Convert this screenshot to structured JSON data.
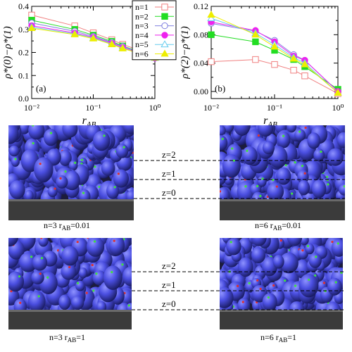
{
  "chart_data": [
    {
      "type": "line",
      "panel_label": "(a)",
      "xscale": "log",
      "xlim": [
        0.01,
        1
      ],
      "ylim": [
        0.0,
        0.4
      ],
      "x_ticks": [
        "10⁻²",
        "10⁻¹",
        "10⁰"
      ],
      "y_ticks": [
        "0.0",
        "0.1",
        "0.2",
        "0.3",
        "0.4"
      ],
      "ylabel": "ρ*(0)−ρ*(1)",
      "xlabel_main": "r",
      "xlabel_sub": "AB",
      "x": [
        0.01,
        0.05,
        0.1,
        0.2,
        0.3,
        1.0
      ],
      "series": [
        {
          "name": "n=1",
          "color": "#f08080",
          "marker": "square-open",
          "values": [
            0.362,
            0.315,
            0.285,
            0.255,
            0.235,
            0.185
          ]
        },
        {
          "name": "n=2",
          "color": "#22dd22",
          "marker": "square-filled",
          "values": [
            0.34,
            0.3,
            0.275,
            0.248,
            0.228,
            0.18
          ]
        },
        {
          "name": "n=3",
          "color": "#8080e0",
          "marker": "circle-open",
          "values": [
            0.328,
            0.292,
            0.27,
            0.244,
            0.226,
            0.178
          ]
        },
        {
          "name": "n=4",
          "color": "#ee22ee",
          "marker": "circle-filled",
          "values": [
            0.316,
            0.285,
            0.266,
            0.24,
            0.222,
            0.175
          ]
        },
        {
          "name": "n=5",
          "color": "#66ccee",
          "marker": "triangle-open",
          "values": [
            0.31,
            0.281,
            0.263,
            0.237,
            0.219,
            0.176
          ]
        },
        {
          "name": "n=6",
          "color": "#eeee00",
          "marker": "triangle-filled",
          "values": [
            0.305,
            0.278,
            0.26,
            0.235,
            0.217,
            0.177
          ]
        }
      ]
    },
    {
      "type": "line",
      "panel_label": "(b)",
      "xscale": "log",
      "xlim": [
        0.01,
        1
      ],
      "ylim": [
        -0.01,
        0.12
      ],
      "x_ticks": [
        "10⁻²",
        "10⁻¹",
        "10⁰"
      ],
      "y_ticks": [
        "0.00",
        "0.04",
        "0.08",
        "0.12"
      ],
      "ylabel": "ρ*(2)−ρ*(1)",
      "xlabel_main": "r",
      "xlabel_sub": "AB",
      "x": [
        0.01,
        0.05,
        0.1,
        0.2,
        0.3,
        1.0
      ],
      "series": [
        {
          "name": "n=1",
          "color": "#f08080",
          "marker": "square-open",
          "values": [
            0.042,
            0.045,
            0.038,
            0.03,
            0.022,
            -0.003
          ]
        },
        {
          "name": "n=2",
          "color": "#22dd22",
          "marker": "square-filled",
          "values": [
            0.08,
            0.07,
            0.058,
            0.045,
            0.035,
            0.003
          ]
        },
        {
          "name": "n=3",
          "color": "#8080e0",
          "marker": "circle-open",
          "values": [
            0.096,
            0.085,
            0.072,
            0.052,
            0.044,
            0.0
          ]
        },
        {
          "name": "n=4",
          "color": "#ee22ee",
          "marker": "circle-filled",
          "values": [
            0.098,
            0.086,
            0.07,
            0.05,
            0.044,
            0.0
          ]
        },
        {
          "name": "n=5",
          "color": "#66ccee",
          "marker": "triangle-open",
          "values": [
            0.103,
            0.082,
            0.066,
            0.048,
            0.04,
            -0.002
          ]
        },
        {
          "name": "n=6",
          "color": "#eeee00",
          "marker": "triangle-filled",
          "values": [
            0.108,
            0.08,
            0.063,
            0.046,
            0.038,
            -0.002
          ]
        }
      ]
    }
  ],
  "snapshots": {
    "levels": [
      "z=2",
      "z=1",
      "z=0"
    ],
    "captions": [
      {
        "main": "n=3 r",
        "sub": "AB",
        "tail": "=0.01"
      },
      {
        "main": "n=6 r",
        "sub": "AB",
        "tail": "=0.01"
      },
      {
        "main": "n=3 r",
        "sub": "AB",
        "tail": "=1"
      },
      {
        "main": "n=6 r",
        "sub": "AB",
        "tail": "=1"
      }
    ]
  }
}
